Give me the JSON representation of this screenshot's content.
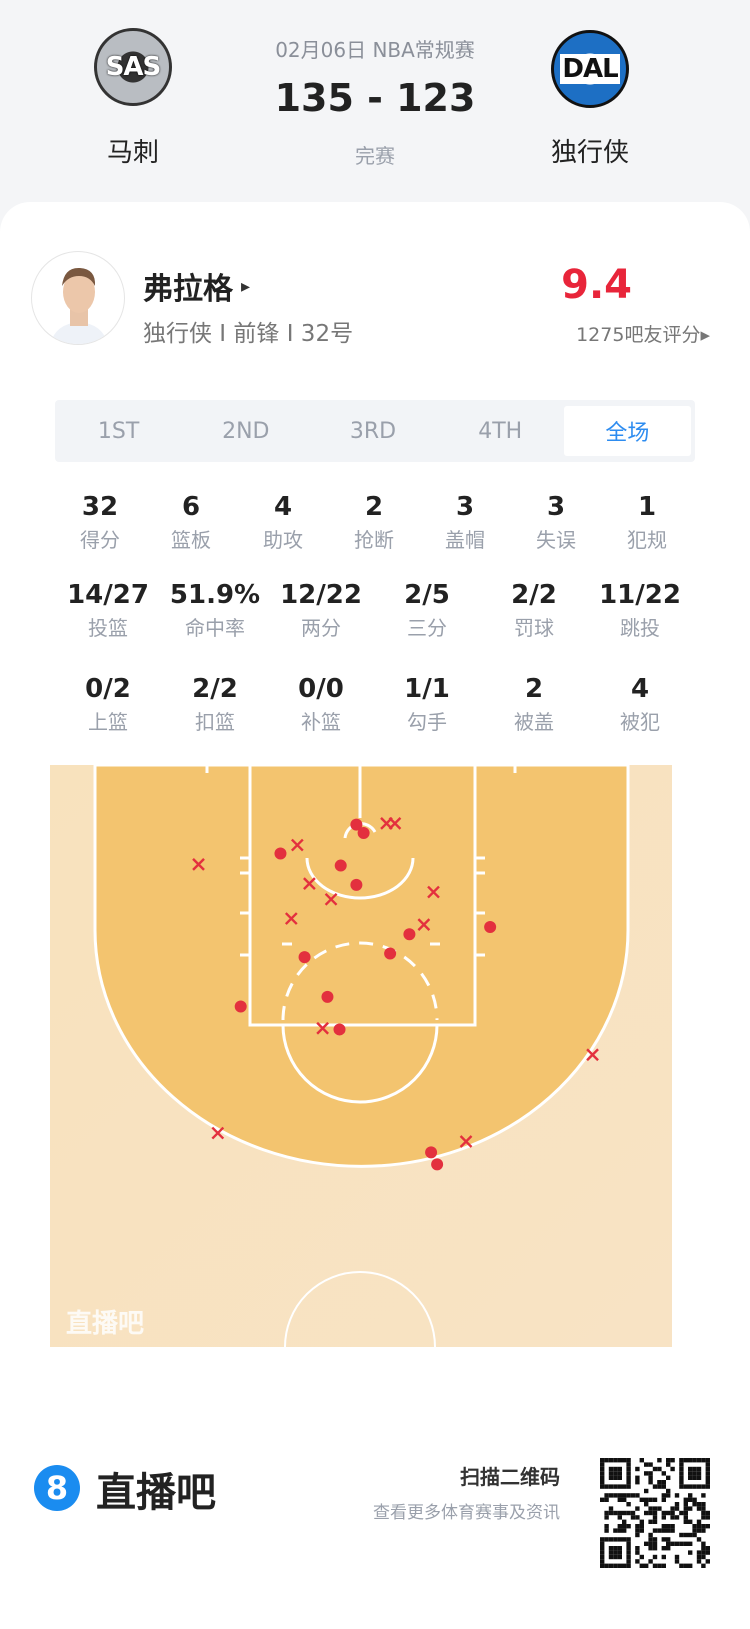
{
  "header": {
    "date_league": "02月06日 NBA常规赛",
    "score": "135 - 123",
    "status": "完赛",
    "home": {
      "abbr": "SAS",
      "name": "马刺",
      "color": "#9aa0a6"
    },
    "away": {
      "abbr": "DAL",
      "name": "独行侠",
      "color": "#1d6fc4"
    }
  },
  "player": {
    "name": "弗拉格",
    "arrow": "▸",
    "meta": "独行侠 I 前锋 I 32号",
    "rating": "9.4",
    "rating_color": "#e8253a",
    "rating_count": "1275吧友评分▸"
  },
  "tabs": [
    {
      "label": "1ST"
    },
    {
      "label": "2ND"
    },
    {
      "label": "3RD"
    },
    {
      "label": "4TH"
    },
    {
      "label": "全场",
      "active": true
    }
  ],
  "stats_row1": [
    {
      "value": "32",
      "label": "得分"
    },
    {
      "value": "6",
      "label": "篮板"
    },
    {
      "value": "4",
      "label": "助攻"
    },
    {
      "value": "2",
      "label": "抢断"
    },
    {
      "value": "3",
      "label": "盖帽"
    },
    {
      "value": "3",
      "label": "失误"
    },
    {
      "value": "1",
      "label": "犯规"
    }
  ],
  "stats_row2": [
    {
      "value": "14/27",
      "label": "投篮"
    },
    {
      "value": "51.9%",
      "label": "命中率"
    },
    {
      "value": "12/22",
      "label": "两分"
    },
    {
      "value": "2/5",
      "label": "三分"
    },
    {
      "value": "2/2",
      "label": "罚球"
    },
    {
      "value": "11/22",
      "label": "跳投"
    }
  ],
  "stats_row3": [
    {
      "value": "0/2",
      "label": "上篮"
    },
    {
      "value": "2/2",
      "label": "扣篮"
    },
    {
      "value": "0/0",
      "label": "补篮"
    },
    {
      "value": "1/1",
      "label": "勾手"
    },
    {
      "value": "2",
      "label": "被盖"
    },
    {
      "value": "4",
      "label": "被犯"
    }
  ],
  "shot_chart": {
    "watermark": "直播吧",
    "units": "feet from basket",
    "made_color": "#e3303e",
    "made": [
      [
        -0.3,
        -0.2
      ],
      [
        0.3,
        0.5
      ],
      [
        -6.6,
        2.2
      ],
      [
        -1.6,
        3.2
      ],
      [
        -0.3,
        4.8
      ],
      [
        10.8,
        8.3
      ],
      [
        4.1,
        8.9
      ],
      [
        -4.6,
        10.8
      ],
      [
        2.5,
        10.5
      ],
      [
        -9.9,
        14.9
      ],
      [
        -2.7,
        14.1
      ],
      [
        -1.7,
        16.8
      ],
      [
        5.9,
        27.0
      ],
      [
        6.4,
        28.0
      ]
    ],
    "missed": [
      [
        2.2,
        -0.3
      ],
      [
        2.9,
        -0.3
      ],
      [
        -5.2,
        1.5
      ],
      [
        -13.4,
        3.1
      ],
      [
        -4.2,
        4.7
      ],
      [
        -2.4,
        6.0
      ],
      [
        6.1,
        5.4
      ],
      [
        -5.7,
        7.6
      ],
      [
        5.3,
        8.1
      ],
      [
        -3.1,
        16.7
      ],
      [
        19.3,
        18.9
      ],
      [
        -11.8,
        25.4
      ],
      [
        8.8,
        26.1
      ]
    ]
  },
  "footer": {
    "brand_digit": "8",
    "brand": "直播吧",
    "brand_color": "#1a8cf0",
    "scan_title": "扫描二维码",
    "scan_sub": "查看更多体育赛事及资讯"
  }
}
